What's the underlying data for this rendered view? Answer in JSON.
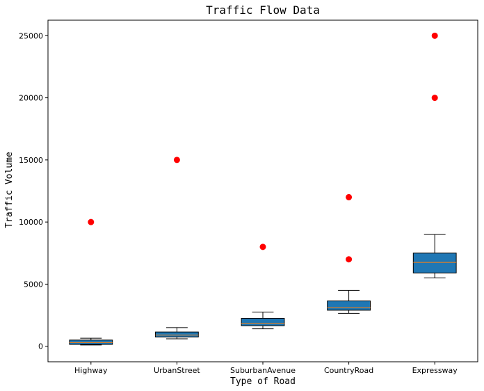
{
  "chart_data": {
    "type": "box",
    "title": "Traffic Flow Data",
    "xlabel": "Type of Road",
    "ylabel": "Traffic Volume",
    "categories": [
      "Highway",
      "UrbanStreet",
      "SuburbanAvenue",
      "CountryRoad",
      "Expressway"
    ],
    "boxes": [
      {
        "whisker_low": 100,
        "q1": 150,
        "median": 300,
        "q3": 500,
        "whisker_high": 650,
        "outliers": [
          10000
        ]
      },
      {
        "whisker_low": 600,
        "q1": 750,
        "median": 900,
        "q3": 1150,
        "whisker_high": 1500,
        "outliers": [
          15000
        ]
      },
      {
        "whisker_low": 1400,
        "q1": 1650,
        "median": 1850,
        "q3": 2250,
        "whisker_high": 2750,
        "outliers": [
          8000
        ]
      },
      {
        "whisker_low": 2650,
        "q1": 2900,
        "median": 3100,
        "q3": 3650,
        "whisker_high": 4500,
        "outliers": [
          7000,
          12000
        ]
      },
      {
        "whisker_low": 5500,
        "q1": 5900,
        "median": 6750,
        "q3": 7500,
        "whisker_high": 9000,
        "outliers": [
          20000,
          25000
        ]
      }
    ],
    "ylim": [
      -1250,
      26250
    ],
    "yticks": [
      0,
      5000,
      10000,
      15000,
      20000,
      25000
    ],
    "grid": false,
    "colors": {
      "box_fill": "#1f77b4",
      "median": "#ff7f0e",
      "outlier": "#ff0000",
      "line": "#000000"
    }
  }
}
